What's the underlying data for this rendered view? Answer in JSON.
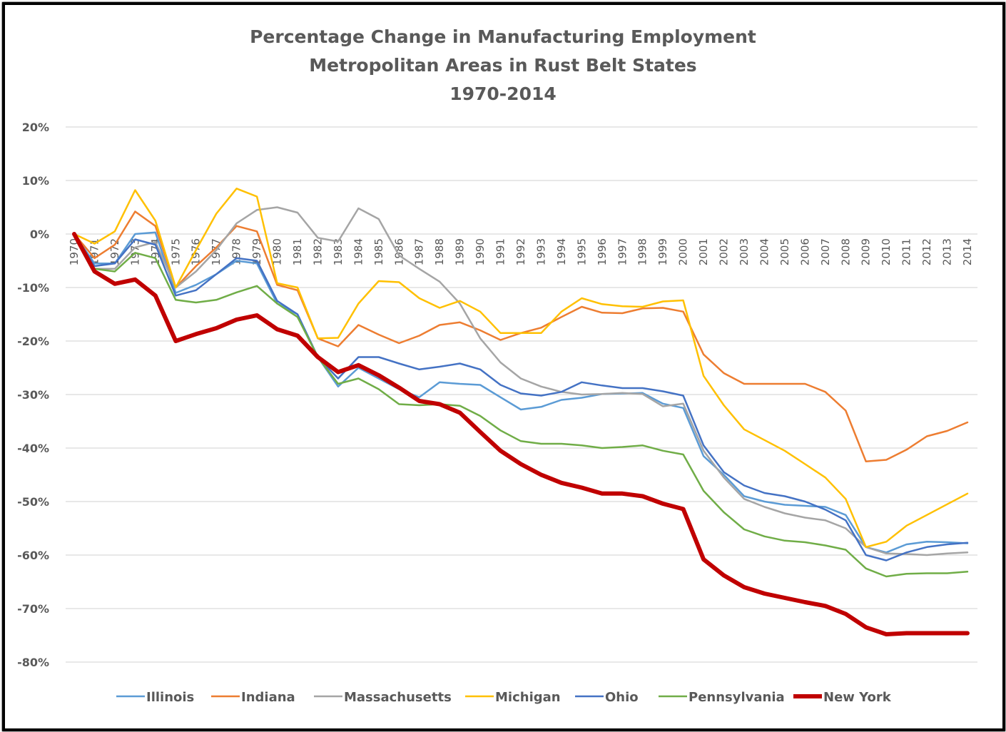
{
  "chart_data": {
    "type": "line",
    "title": [
      "Percentage Change in Manufacturing Employment",
      "Metropolitan Areas in Rust Belt States",
      "1970-2014"
    ],
    "xlabel": "",
    "ylabel": "",
    "ylim": [
      -80,
      20
    ],
    "y_ticks": [
      20,
      10,
      0,
      -10,
      -20,
      -30,
      -40,
      -50,
      -60,
      -70,
      -80
    ],
    "y_tick_labels": [
      "20%",
      "10%",
      "0%",
      "-10%",
      "-20%",
      "-30%",
      "-40%",
      "-50%",
      "-60%",
      "-70%",
      "-80%"
    ],
    "grid": "horizontal",
    "legend_position": "bottom",
    "x": [
      1970,
      1971,
      1972,
      1973,
      1974,
      1975,
      1976,
      1977,
      1978,
      1979,
      1980,
      1981,
      1982,
      1983,
      1984,
      1985,
      1986,
      1987,
      1988,
      1989,
      1990,
      1991,
      1992,
      1993,
      1994,
      1995,
      1996,
      1997,
      1998,
      1999,
      2000,
      2001,
      2002,
      2003,
      2004,
      2005,
      2006,
      2007,
      2008,
      2009,
      2010,
      2011,
      2012,
      2013,
      2014
    ],
    "series": [
      {
        "name": "Illinois",
        "color": "#5B9BD5",
        "width": 2.5,
        "values": [
          0,
          -5.5,
          -5.5,
          0,
          0.3,
          -11,
          -9.5,
          -7.5,
          -5,
          -5.5,
          -13,
          -15,
          -23,
          -28.5,
          -25,
          -27,
          -29,
          -30.5,
          -27.7,
          -28,
          -28.2,
          -30.5,
          -32.8,
          -32.3,
          -31,
          -30.6,
          -29.9,
          -29.8,
          -29.7,
          -31.7,
          -32.5,
          -41.5,
          -45,
          -49,
          -50,
          -50.6,
          -50.8,
          -51,
          -52.5,
          -58.5,
          -59.5,
          -58,
          -57.5,
          -57.6,
          -57.8
        ]
      },
      {
        "name": "Indiana",
        "color": "#ED7D31",
        "width": 2.5,
        "values": [
          0,
          -4.5,
          -2,
          4.2,
          1.5,
          -10,
          -6,
          -2.5,
          1.5,
          0.5,
          -9.5,
          -10.5,
          -19.5,
          -21,
          -17,
          -18.8,
          -20.4,
          -19,
          -17,
          -16.5,
          -18,
          -19.8,
          -18.5,
          -17.5,
          -15.5,
          -13.6,
          -14.7,
          -14.8,
          -13.9,
          -13.8,
          -14.5,
          -22.5,
          -26,
          -28,
          -28,
          -28,
          -28,
          -29.5,
          -33,
          -42.5,
          -42.2,
          -40.3,
          -37.8,
          -36.8,
          -35.2
        ]
      },
      {
        "name": "Massachusetts",
        "color": "#A5A5A5",
        "width": 2.5,
        "values": [
          0,
          -6.5,
          -6.5,
          -2.5,
          -1.5,
          -10,
          -7,
          -3,
          2,
          4.5,
          5,
          4,
          -0.7,
          -1.4,
          4.8,
          2.8,
          -4,
          -6.5,
          -8.9,
          -13,
          -19.5,
          -24,
          -27,
          -28.5,
          -29.5,
          -30,
          -29.9,
          -29.7,
          -29.9,
          -32.2,
          -31.7,
          -40.5,
          -45.5,
          -49.5,
          -51,
          -52.2,
          -53,
          -53.5,
          -55,
          -58.5,
          -59.7,
          -59.8,
          -60,
          -59.7,
          -59.5
        ]
      },
      {
        "name": "Michigan",
        "color": "#FFC000",
        "width": 2.5,
        "values": [
          0,
          -1.8,
          0.5,
          8.2,
          2.5,
          -10,
          -3,
          3.8,
          8.5,
          7,
          -9.2,
          -10,
          -19.5,
          -19.4,
          -13,
          -8.8,
          -9,
          -12,
          -13.8,
          -12.5,
          -14.5,
          -18.5,
          -18.5,
          -18.5,
          -14.5,
          -12,
          -13.1,
          -13.5,
          -13.6,
          -12.6,
          -12.4,
          -26.5,
          -32,
          -36.5,
          -38.5,
          -40.5,
          -43,
          -45.5,
          -49.5,
          -58.5,
          -57.5,
          -54.5,
          -52.5,
          -50.5,
          -48.5
        ]
      },
      {
        "name": "Ohio",
        "color": "#4472C4",
        "width": 2.5,
        "values": [
          0,
          -6,
          -5.5,
          -1,
          -2,
          -11.5,
          -10.5,
          -7.5,
          -4.5,
          -5,
          -12.5,
          -15,
          -23,
          -27,
          -23,
          -23,
          -24.2,
          -25.3,
          -24.8,
          -24.2,
          -25.3,
          -28.2,
          -29.8,
          -30.2,
          -29.5,
          -27.7,
          -28.3,
          -28.8,
          -28.8,
          -29.4,
          -30.2,
          -39.5,
          -44.5,
          -47,
          -48.4,
          -49,
          -50,
          -51.5,
          -53.5,
          -60,
          -61,
          -59.5,
          -58.5,
          -58,
          -57.7
        ]
      },
      {
        "name": "Pennsylvania",
        "color": "#70AD47",
        "width": 2.5,
        "values": [
          0,
          -6.5,
          -7,
          -3.5,
          -4.5,
          -12.3,
          -12.8,
          -12.3,
          -10.9,
          -9.7,
          -13,
          -15.5,
          -23,
          -28,
          -27,
          -29,
          -31.8,
          -32,
          -31.8,
          -32.1,
          -34,
          -36.7,
          -38.7,
          -39.2,
          -39.2,
          -39.5,
          -40,
          -39.8,
          -39.5,
          -40.5,
          -41.2,
          -48,
          -52,
          -55.2,
          -56.5,
          -57.3,
          -57.6,
          -58.2,
          -59,
          -62.5,
          -64,
          -63.5,
          -63.4,
          -63.4,
          -63.1
        ]
      },
      {
        "name": "New York",
        "color": "#C00000",
        "width": 6,
        "values": [
          0,
          -7,
          -9.3,
          -8.5,
          -11.5,
          -20,
          -18.7,
          -17.6,
          -16,
          -15.2,
          -17.8,
          -19,
          -23,
          -25.8,
          -24.5,
          -26.4,
          -28.7,
          -31.2,
          -31.8,
          -33.4,
          -37,
          -40.5,
          -43,
          -45,
          -46.5,
          -47.4,
          -48.5,
          -48.5,
          -49,
          -50.4,
          -51.4,
          -60.8,
          -63.8,
          -66,
          -67.2,
          -68,
          -68.8,
          -69.5,
          -71,
          -73.5,
          -74.8,
          -74.6,
          -74.6,
          -74.6,
          -74.6
        ]
      }
    ]
  }
}
